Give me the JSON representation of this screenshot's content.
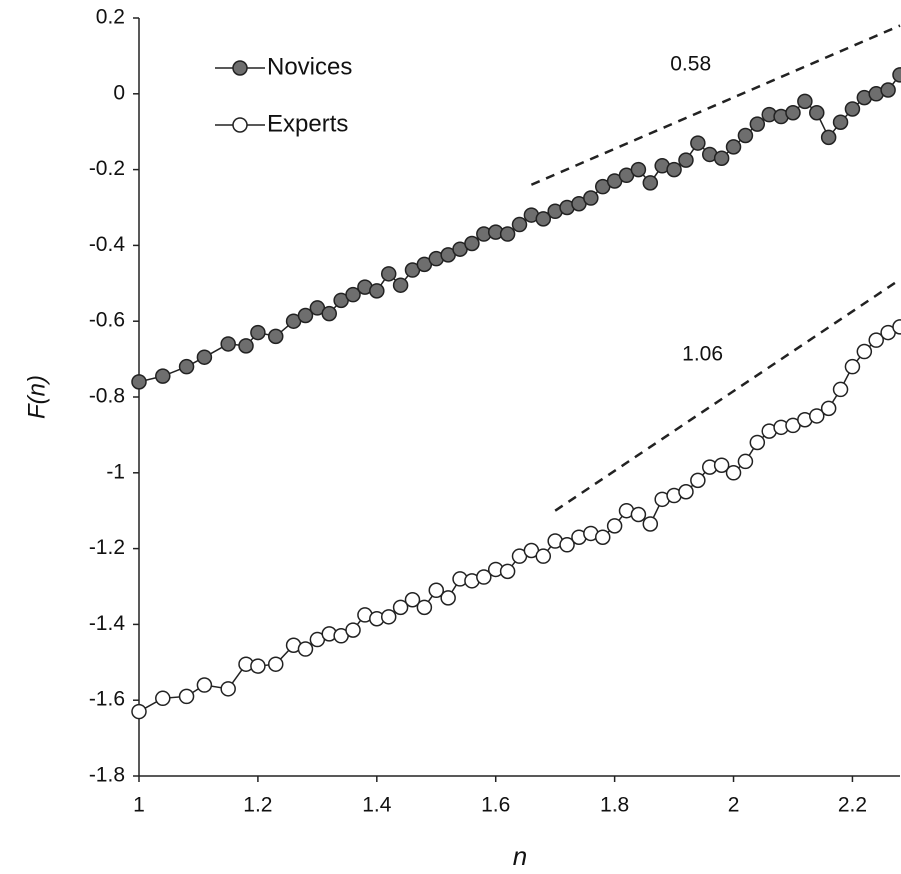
{
  "chart_data": {
    "type": "line",
    "x_label": "n",
    "y_label": "F(n)",
    "x": [
      1.0,
      1.04,
      1.08,
      1.11,
      1.15,
      1.18,
      1.2,
      1.23,
      1.26,
      1.28,
      1.3,
      1.32,
      1.34,
      1.36,
      1.38,
      1.4,
      1.42,
      1.44,
      1.46,
      1.48,
      1.5,
      1.52,
      1.54,
      1.56,
      1.58,
      1.6,
      1.62,
      1.64,
      1.66,
      1.68,
      1.7,
      1.72,
      1.74,
      1.76,
      1.78,
      1.8,
      1.82,
      1.84,
      1.86,
      1.88,
      1.9,
      1.92,
      1.94,
      1.96,
      1.98,
      2.0,
      2.02,
      2.04,
      2.06,
      2.08,
      2.1,
      2.12,
      2.14,
      2.16,
      2.18,
      2.2,
      2.22,
      2.24,
      2.26,
      2.28
    ],
    "series": [
      {
        "name": "Novices",
        "color": "#6e6e6e",
        "values": [
          -0.76,
          -0.745,
          -0.72,
          -0.695,
          -0.66,
          -0.665,
          -0.63,
          -0.64,
          -0.6,
          -0.585,
          -0.565,
          -0.58,
          -0.545,
          -0.53,
          -0.51,
          -0.52,
          -0.475,
          -0.505,
          -0.465,
          -0.45,
          -0.435,
          -0.425,
          -0.41,
          -0.395,
          -0.37,
          -0.365,
          -0.37,
          -0.345,
          -0.32,
          -0.33,
          -0.31,
          -0.3,
          -0.29,
          -0.275,
          -0.245,
          -0.23,
          -0.215,
          -0.2,
          -0.235,
          -0.19,
          -0.2,
          -0.175,
          -0.13,
          -0.16,
          -0.17,
          -0.14,
          -0.11,
          -0.08,
          -0.055,
          -0.06,
          -0.05,
          -0.02,
          -0.05,
          -0.115,
          -0.075,
          -0.04,
          -0.01,
          0.0,
          0.01,
          0.05
        ]
      },
      {
        "name": "Experts",
        "color": "#ffffff",
        "values": [
          -1.63,
          -1.595,
          -1.59,
          -1.56,
          -1.57,
          -1.505,
          -1.51,
          -1.505,
          -1.455,
          -1.465,
          -1.44,
          -1.425,
          -1.43,
          -1.415,
          -1.375,
          -1.385,
          -1.38,
          -1.355,
          -1.335,
          -1.355,
          -1.31,
          -1.33,
          -1.28,
          -1.285,
          -1.275,
          -1.255,
          -1.26,
          -1.22,
          -1.205,
          -1.22,
          -1.18,
          -1.19,
          -1.17,
          -1.16,
          -1.17,
          -1.14,
          -1.1,
          -1.11,
          -1.135,
          -1.07,
          -1.06,
          -1.05,
          -1.02,
          -0.985,
          -0.98,
          -1.0,
          -0.97,
          -0.92,
          -0.89,
          -0.88,
          -0.875,
          -0.86,
          -0.85,
          -0.83,
          -0.78,
          -0.72,
          -0.68,
          -0.65,
          -0.63,
          -0.615
        ]
      }
    ],
    "ref_lines": [
      {
        "label": "0.58",
        "x": [
          1.66,
          2.28
        ],
        "y": [
          -0.24,
          0.18
        ]
      },
      {
        "label": "1.06",
        "x": [
          1.7,
          2.28
        ],
        "y": [
          -1.1,
          -0.49
        ]
      }
    ],
    "xlim": [
      1,
      2.28
    ],
    "ylim": [
      -1.8,
      0.2
    ],
    "xticks": [
      1,
      1.2,
      1.4,
      1.6,
      1.8,
      2,
      2.2
    ],
    "yticks": [
      -1.8,
      -1.6,
      -1.4,
      -1.2,
      -1,
      -0.8,
      -0.6,
      -0.4,
      -0.2,
      0,
      0.2
    ],
    "legend": "top-left"
  }
}
